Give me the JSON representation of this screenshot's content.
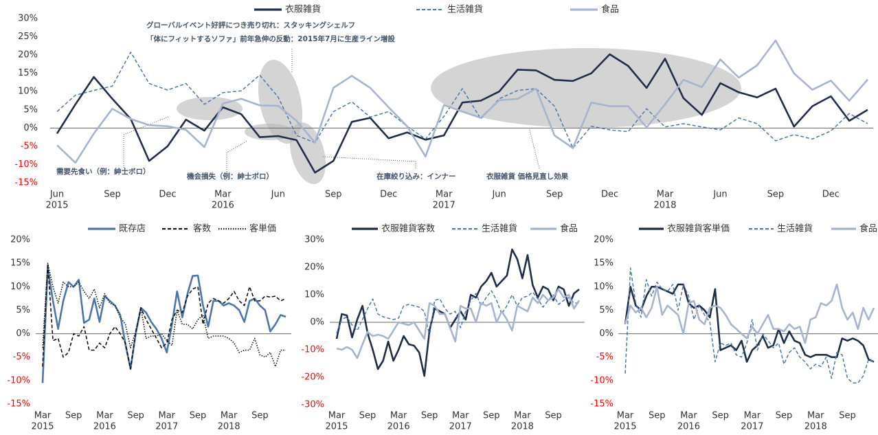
{
  "chart_data": [
    {
      "type": "line",
      "negative_tick_color": "#ff0000",
      "categories": [
        "Jun",
        null,
        null,
        "Sep",
        null,
        null,
        "Dec",
        null,
        null,
        "Mar",
        null,
        null,
        "Jun",
        null,
        null,
        "Sep",
        null,
        null,
        "Dec",
        null,
        null,
        "Mar",
        null,
        null,
        "Jun",
        null,
        null,
        "Sep",
        null,
        null,
        "Dec",
        null,
        null,
        "Mar",
        null,
        null,
        "Jun",
        null,
        null,
        "Sep",
        null,
        null,
        "Dec",
        null,
        null
      ],
      "years": [
        "2015",
        null,
        null,
        null,
        null,
        null,
        null,
        null,
        null,
        "2016",
        null,
        null,
        null,
        null,
        null,
        null,
        null,
        null,
        null,
        null,
        null,
        "2017",
        null,
        null,
        null,
        null,
        null,
        null,
        null,
        null,
        null,
        null,
        null,
        "2018",
        null,
        null,
        null,
        null,
        null,
        null,
        null,
        null,
        null,
        null,
        null
      ],
      "ylim": [
        -15,
        30
      ],
      "yticks": [
        {
          "value": 30,
          "label": "30%"
        },
        {
          "value": 25,
          "label": "25%"
        },
        {
          "value": 20,
          "label": "20%"
        },
        {
          "value": 15,
          "label": "15%"
        },
        {
          "value": 10,
          "label": "10%"
        },
        {
          "value": 5,
          "label": "5%"
        },
        {
          "value": 0,
          "label": "0%"
        },
        {
          "value": -5,
          "label": "-5%"
        },
        {
          "value": -10,
          "label": "-10%"
        },
        {
          "value": -15,
          "label": "-15%"
        }
      ],
      "series": [
        {
          "name": "衣服雑貨",
          "color": "#1f2d4a",
          "dash": "solid",
          "values": [
            -1.5,
            6.5,
            14,
            8,
            2.5,
            -9,
            -5,
            2.3,
            -0.7,
            5.7,
            3.8,
            -2.5,
            -2.2,
            -3.3,
            -12.2,
            -9,
            1.7,
            2.8,
            -2.8,
            -1.2,
            -3.2,
            -2,
            7,
            7.5,
            10,
            16,
            15.8,
            13.2,
            12.9,
            15,
            20.2,
            17,
            11,
            19,
            8.2,
            3.6,
            12.3,
            9.8,
            8.4,
            10.8,
            0.4,
            6,
            8.7,
            2,
            5
          ]
        },
        {
          "name": "生活雑貨",
          "color": "#4a76b0",
          "dash": "dashed",
          "values": [
            4.5,
            9,
            10.3,
            11.5,
            20.8,
            12.2,
            10.4,
            12.2,
            6.5,
            9.7,
            10.2,
            14.5,
            8.5,
            -2,
            -4,
            4.5,
            7.2,
            3,
            4.5,
            0.5,
            -3,
            3.2,
            10.8,
            2.5,
            8,
            10.3,
            10.8,
            6,
            -5.5,
            0.5,
            -0.5,
            -1,
            5.3,
            0.3,
            1.2,
            0.3,
            -0.5,
            2.8,
            1.2,
            -3.5,
            -1.8,
            -3,
            -0.8,
            4,
            1.2
          ]
        },
        {
          "name": "食品",
          "color": "#a6b4d0",
          "dash": "solid",
          "values": [
            -4.7,
            -9.5,
            -1.5,
            5.3,
            2.5,
            0.8,
            0.5,
            -0.5,
            -5.2,
            6.7,
            8,
            6.2,
            6.1,
            2,
            -4,
            11,
            14.3,
            11,
            5.7,
            0.5,
            -7.8,
            6.3,
            4.5,
            2.8,
            7.6,
            8,
            10.8,
            -2,
            -5.5,
            7,
            6,
            6,
            0.2,
            6.5,
            13.2,
            11.2,
            18.8,
            13.8,
            17.2,
            24,
            15,
            10.5,
            13,
            7.5,
            13.3
          ]
        }
      ],
      "annotations": [
        "グローバルイベント好評につき売り切れ：スタッキングシェルフ",
        "「体にフィットするソファ」前年急伸の反動：2015年7月に生産ライン増設",
        "需要先食い（例：紳士ボロ）",
        "機会損失（例：紳士ボロ）",
        "在庫絞り込み：インナー",
        "衣服雑貨 価格見直し効果"
      ]
    },
    {
      "type": "line",
      "negative_tick_color": "#ff0000",
      "categories": [
        "Mar",
        null,
        null,
        null,
        null,
        null,
        "Sep",
        null,
        null,
        null,
        null,
        null,
        "Mar",
        null,
        null,
        null,
        null,
        null,
        "Sep",
        null,
        null,
        null,
        null,
        null,
        "Mar",
        null,
        null,
        null,
        null,
        null,
        "Sep",
        null,
        null,
        null,
        null,
        null,
        "Mar",
        null,
        null,
        null,
        null,
        null,
        "Sep",
        null,
        null,
        null,
        null,
        null
      ],
      "years": [
        "2015",
        null,
        null,
        null,
        null,
        null,
        null,
        null,
        null,
        null,
        null,
        null,
        "2016",
        null,
        null,
        null,
        null,
        null,
        null,
        null,
        null,
        null,
        null,
        null,
        "2017",
        null,
        null,
        null,
        null,
        null,
        null,
        null,
        null,
        null,
        null,
        null,
        "2018",
        null,
        null,
        null,
        null,
        null,
        null,
        null,
        null,
        null,
        null,
        null
      ],
      "ylim": [
        -15,
        20
      ],
      "yticks": [
        {
          "value": 20,
          "label": "20%"
        },
        {
          "value": 15,
          "label": "15%"
        },
        {
          "value": 10,
          "label": "10%"
        },
        {
          "value": 5,
          "label": "5%"
        },
        {
          "value": 0,
          "label": "0%"
        },
        {
          "value": -5,
          "label": "-5%"
        },
        {
          "value": -10,
          "label": "-10%"
        },
        {
          "value": -15,
          "label": "-15%"
        }
      ],
      "series": [
        {
          "name": "既存店",
          "color": "#4a76b0",
          "dash": "solid",
          "values": [
            -10.5,
            14,
            7,
            1,
            7,
            11,
            10,
            11.5,
            2.3,
            3,
            7.5,
            2.5,
            8,
            7,
            6,
            4,
            -2.2,
            -7.5,
            0,
            5.5,
            4.5,
            2.5,
            1,
            -1,
            -4,
            2,
            9,
            3.5,
            8.5,
            12.3,
            12.4,
            6,
            1.5,
            7,
            7,
            6,
            6.5,
            6,
            5,
            2.5,
            7,
            7.5,
            6,
            5,
            0.5,
            2,
            4,
            3.6
          ]
        },
        {
          "name": "客数",
          "color": "#111111",
          "dash": "dashed",
          "values": [
            -7,
            15,
            -1.5,
            -1,
            -5,
            -4,
            0,
            -0.5,
            1.5,
            -3.5,
            -3.5,
            -2,
            -3,
            0,
            1.5,
            0,
            -2,
            -7.5,
            0.5,
            5.5,
            3,
            1,
            -1,
            -3,
            -2,
            3,
            5,
            4.5,
            8,
            9.5,
            10,
            2,
            6.5,
            7.5,
            7,
            6.5,
            7.5,
            9,
            7,
            6,
            10,
            7,
            7,
            8,
            7.8,
            8,
            7,
            7.5
          ]
        },
        {
          "name": "客単価",
          "color": "#111111",
          "dash": "dotted",
          "values": [
            -3,
            15,
            10,
            6.5,
            11,
            10,
            10,
            11,
            9,
            7.5,
            9.5,
            5.5,
            8.5,
            6.5,
            6,
            3.5,
            2,
            -3,
            0.5,
            5.5,
            -1,
            -0.5,
            -0.5,
            0,
            -1.5,
            -2.5,
            5,
            2,
            2,
            1,
            3,
            4,
            -1,
            -0.5,
            -0.5,
            -0.5,
            -1,
            -2,
            -4,
            -3.5,
            -3.5,
            -1,
            -4.5,
            -5,
            -4,
            -7,
            -3.5,
            -3.5
          ]
        }
      ]
    },
    {
      "type": "line",
      "negative_tick_color": "#ff0000",
      "categories": [
        "Mar",
        null,
        null,
        null,
        null,
        null,
        "Sep",
        null,
        null,
        null,
        null,
        null,
        "Mar",
        null,
        null,
        null,
        null,
        null,
        "Sep",
        null,
        null,
        null,
        null,
        null,
        "Mar",
        null,
        null,
        null,
        null,
        null,
        "Sep",
        null,
        null,
        null,
        null,
        null,
        "Mar",
        null,
        null,
        null,
        null,
        null,
        "Sep",
        null,
        null,
        null,
        null,
        null
      ],
      "years": [
        "2015",
        null,
        null,
        null,
        null,
        null,
        null,
        null,
        null,
        null,
        null,
        null,
        "2016",
        null,
        null,
        null,
        null,
        null,
        null,
        null,
        null,
        null,
        null,
        null,
        "2017",
        null,
        null,
        null,
        null,
        null,
        null,
        null,
        null,
        null,
        null,
        null,
        "2018",
        null,
        null,
        null,
        null,
        null,
        null,
        null,
        null,
        null,
        null,
        null
      ],
      "ylim": [
        -30,
        30
      ],
      "yticks": [
        {
          "value": 30,
          "label": "30%"
        },
        {
          "value": 20,
          "label": "20%"
        },
        {
          "value": 10,
          "label": "10%"
        },
        {
          "value": 0,
          "label": "0%"
        },
        {
          "value": -10,
          "label": "-10%"
        },
        {
          "value": -20,
          "label": "-20%"
        },
        {
          "value": -30,
          "label": "-30%"
        }
      ],
      "series": [
        {
          "name": "衣服雑貨客数",
          "color": "#1f2d4a",
          "dash": "solid",
          "values": [
            -6,
            3,
            2.5,
            -5.5,
            1,
            6,
            -4,
            -10,
            -17,
            -14,
            -7,
            -14,
            -10,
            -5,
            -8,
            -8.5,
            -11,
            -19.5,
            -3,
            5,
            4,
            3,
            -2,
            1,
            4,
            1,
            10,
            9,
            13,
            15,
            18,
            13,
            15,
            17,
            26.5,
            23,
            16,
            24.5,
            13.5,
            9,
            13,
            12,
            8,
            13,
            12,
            6,
            10.5,
            12
          ]
        },
        {
          "name": "生活雑貨",
          "color": "#4a76b0",
          "dash": "dashed",
          "values": [
            -4,
            1,
            2,
            -1,
            -3,
            1,
            5,
            8.5,
            3,
            2,
            1.5,
            1,
            1.5,
            6,
            6.5,
            6,
            5.5,
            4,
            -5,
            8,
            8.5,
            5,
            3,
            4,
            -2,
            4,
            8,
            10.5,
            6,
            9,
            11.5,
            8,
            3,
            6,
            10,
            6,
            9,
            9.5,
            11,
            8.5,
            5.5,
            8,
            10,
            6.5,
            8,
            9,
            7,
            7
          ]
        },
        {
          "name": "食品",
          "color": "#a6b4d0",
          "dash": "solid",
          "values": [
            -9.5,
            -10,
            -9,
            -10,
            -13,
            -8,
            -3.5,
            -5,
            -4.5,
            -5,
            -6,
            -3,
            0,
            -0.5,
            -1,
            0,
            -3,
            -6,
            7,
            6,
            3,
            3,
            -2,
            -7,
            6,
            5,
            5,
            0,
            7,
            6,
            7,
            0,
            4,
            1,
            -3,
            6,
            5,
            4,
            9,
            7,
            10,
            8,
            9,
            12,
            9,
            10,
            5,
            8
          ]
        }
      ]
    },
    {
      "type": "line",
      "negative_tick_color": "#ff0000",
      "categories": [
        "Mar",
        null,
        null,
        null,
        null,
        null,
        "Sep",
        null,
        null,
        null,
        null,
        null,
        "Mar",
        null,
        null,
        null,
        null,
        null,
        "Sep",
        null,
        null,
        null,
        null,
        null,
        "Mar",
        null,
        null,
        null,
        null,
        null,
        "Sep",
        null,
        null,
        null,
        null,
        null,
        "Mar",
        null,
        null,
        null,
        null,
        null,
        "Sep",
        null,
        null,
        null,
        null,
        null
      ],
      "years": [
        "2015",
        null,
        null,
        null,
        null,
        null,
        null,
        null,
        null,
        null,
        null,
        null,
        "2016",
        null,
        null,
        null,
        null,
        null,
        null,
        null,
        null,
        null,
        null,
        null,
        "2017",
        null,
        null,
        null,
        null,
        null,
        null,
        null,
        null,
        null,
        null,
        null,
        "2018",
        null,
        null,
        null,
        null,
        null,
        null,
        null,
        null,
        null,
        null,
        null
      ],
      "ylim": [
        -15,
        20
      ],
      "yticks": [
        {
          "value": 20,
          "label": "20%"
        },
        {
          "value": 15,
          "label": "15%"
        },
        {
          "value": 10,
          "label": "10%"
        },
        {
          "value": 5,
          "label": "5%"
        },
        {
          "value": 0,
          "label": "0%"
        },
        {
          "value": -5,
          "label": "-5%"
        },
        {
          "value": -10,
          "label": "-10%"
        },
        {
          "value": -15,
          "label": "-15%"
        }
      ],
      "series": [
        {
          "name": "衣服雑貨客単価",
          "color": "#1f2d4a",
          "dash": "solid",
          "values": [
            2,
            10,
            6,
            5,
            8,
            10,
            10,
            9.5,
            9,
            8.5,
            10.5,
            10.5,
            6.5,
            5.5,
            6,
            5,
            3.5,
            9.5,
            -3.5,
            -3,
            -2.5,
            -3.5,
            -1.5,
            -6,
            -3.5,
            -2.5,
            -0.5,
            -3,
            -2.5,
            1,
            -2,
            0.5,
            -1.5,
            -2,
            -4.5,
            -5,
            -4.5,
            -4.5,
            -4.5,
            -5,
            -5,
            -1,
            -1.5,
            -1,
            -1.5,
            -2.5,
            -5.5,
            -6
          ]
        },
        {
          "name": "生活雑貨",
          "color": "#4a76b0",
          "dash": "dashed",
          "values": [
            -8.5,
            14,
            6.5,
            3.5,
            11.5,
            8,
            11,
            9.5,
            9,
            10.5,
            5,
            10.5,
            8,
            3,
            6,
            4,
            2.5,
            -6,
            -2,
            -2.5,
            -2,
            -4.5,
            -5,
            -2,
            3,
            -3.5,
            0,
            -1.5,
            -3,
            -2,
            -6.5,
            -4,
            -3,
            -5,
            -6,
            -7.5,
            -6.5,
            -7,
            -5,
            -9.5,
            -4,
            -4.5,
            -9.5,
            -10.5,
            -10.5,
            -9,
            -5.5,
            -6
          ]
        },
        {
          "name": "食品",
          "color": "#a6b4d0",
          "dash": "solid",
          "values": [
            2,
            6,
            4.5,
            5.5,
            3.5,
            5.5,
            10,
            4,
            6,
            5,
            4,
            0,
            6.5,
            7,
            3,
            2,
            5.5,
            6,
            5.5,
            4,
            2,
            1,
            0,
            -1,
            1.5,
            0,
            2,
            4,
            1,
            1,
            0.5,
            2,
            1,
            1.5,
            -2,
            3,
            3.5,
            6.5,
            6,
            7,
            10.5,
            5.5,
            3,
            4.5,
            1,
            5.5,
            3,
            5.5
          ]
        }
      ]
    }
  ]
}
